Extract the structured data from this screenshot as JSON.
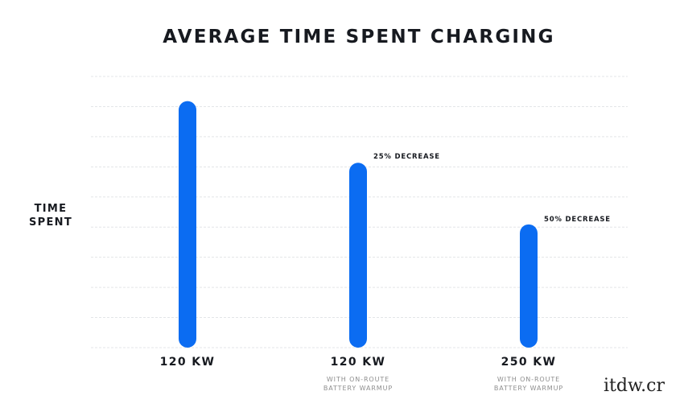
{
  "chart_data": {
    "type": "bar",
    "title": "AVERAGE TIME SPENT CHARGING",
    "ylabel": [
      "TIME",
      "SPENT"
    ],
    "xlabel": "",
    "categories": [
      {
        "label": "120 KW",
        "sublabel": []
      },
      {
        "label": "120 KW",
        "sublabel": [
          "WITH ON-ROUTE",
          "BATTERY WARMUP"
        ]
      },
      {
        "label": "250 KW",
        "sublabel": [
          "WITH ON-ROUTE",
          "BATTERY WARMUP"
        ]
      }
    ],
    "values": [
      100,
      75,
      50
    ],
    "annotations": [
      "",
      "25% DECREASE",
      "50% DECREASE"
    ],
    "ylim": [
      0,
      110
    ],
    "grid": true,
    "legend": "none"
  },
  "colors": {
    "bar": "#0b6cf2",
    "grid": "#e3e5e8",
    "text": "#171a20",
    "subtext": "#8e8e8e"
  },
  "watermark": {
    "text": "itdw.cr"
  }
}
